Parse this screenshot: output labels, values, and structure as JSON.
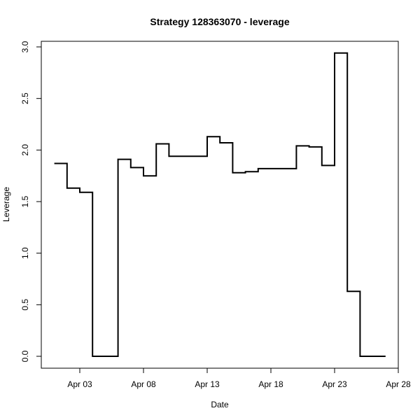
{
  "chart_data": {
    "type": "line",
    "step": "post",
    "title": "Strategy 128363070 - leverage",
    "xlabel": "Date",
    "ylabel": "Leverage",
    "xlim": [
      "2015-03-31",
      "2015-04-28"
    ],
    "ylim": [
      0,
      3.0
    ],
    "x_ticks": [
      {
        "date": "2015-04-03",
        "label": "Apr 03"
      },
      {
        "date": "2015-04-08",
        "label": "Apr 08"
      },
      {
        "date": "2015-04-13",
        "label": "Apr 13"
      },
      {
        "date": "2015-04-18",
        "label": "Apr 18"
      },
      {
        "date": "2015-04-23",
        "label": "Apr 23"
      },
      {
        "date": "2015-04-28",
        "label": "Apr 28"
      }
    ],
    "y_ticks": [
      {
        "value": 0.0,
        "label": "0.0"
      },
      {
        "value": 0.5,
        "label": "0.5"
      },
      {
        "value": 1.0,
        "label": "1.0"
      },
      {
        "value": 1.5,
        "label": "1.5"
      },
      {
        "value": 2.0,
        "label": "2.0"
      },
      {
        "value": 2.5,
        "label": "2.5"
      },
      {
        "value": 3.0,
        "label": "3.0"
      }
    ],
    "grid": false,
    "series": [
      {
        "color": "#000000",
        "x": [
          "2015-04-01",
          "2015-04-02",
          "2015-04-03",
          "2015-04-04",
          "2015-04-05",
          "2015-04-06",
          "2015-04-07",
          "2015-04-08",
          "2015-04-09",
          "2015-04-10",
          "2015-04-11",
          "2015-04-12",
          "2015-04-13",
          "2015-04-14",
          "2015-04-15",
          "2015-04-16",
          "2015-04-17",
          "2015-04-18",
          "2015-04-19",
          "2015-04-20",
          "2015-04-21",
          "2015-04-22",
          "2015-04-23",
          "2015-04-24",
          "2015-04-25",
          "2015-04-26",
          "2015-04-27"
        ],
        "y": [
          1.87,
          1.63,
          1.59,
          0.0,
          0.0,
          1.91,
          1.83,
          1.75,
          2.06,
          1.94,
          1.94,
          1.94,
          2.13,
          2.07,
          1.78,
          1.79,
          1.82,
          1.82,
          1.82,
          2.04,
          2.03,
          1.85,
          2.94,
          0.63,
          0.0,
          0.0,
          0.0
        ]
      }
    ]
  }
}
